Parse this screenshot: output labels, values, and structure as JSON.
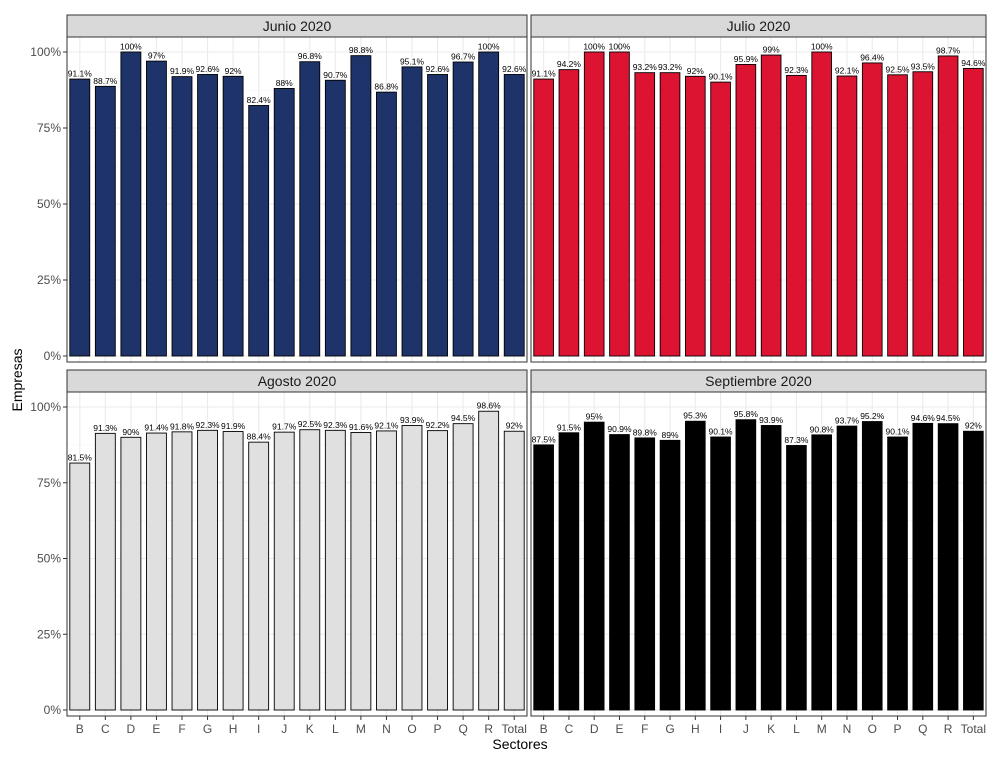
{
  "chart_data": {
    "type": "bar",
    "xlabel": "Sectores",
    "ylabel": "Empresas",
    "ylim": [
      0,
      100
    ],
    "yticks": [
      "0%",
      "25%",
      "50%",
      "75%",
      "100%"
    ],
    "grid": true,
    "legend": "none",
    "categories": [
      "B",
      "C",
      "D",
      "E",
      "F",
      "G",
      "H",
      "I",
      "J",
      "K",
      "L",
      "M",
      "N",
      "O",
      "P",
      "Q",
      "R",
      "Total"
    ],
    "panels": [
      {
        "title": "Junio 2020",
        "color": "#1f336b",
        "values": [
          91.1,
          88.7,
          100,
          97,
          91.9,
          92.6,
          92,
          82.4,
          88,
          96.8,
          90.7,
          98.8,
          86.8,
          95.1,
          92.6,
          96.7,
          100,
          92.6
        ],
        "labels": [
          "91.1%",
          "88.7%",
          "100%",
          "97%",
          "91.9%",
          "92.6%",
          "92%",
          "82.4%",
          "88%",
          "96.8%",
          "90.7%",
          "98.8%",
          "86.8%",
          "95.1%",
          "92.6%",
          "96.7%",
          "100%",
          "92.6%"
        ]
      },
      {
        "title": "Julio 2020",
        "color": "#dc1432",
        "values": [
          91.1,
          94.2,
          100,
          100,
          93.2,
          93.2,
          92,
          90.1,
          95.9,
          99,
          92.3,
          100,
          92.1,
          96.4,
          92.5,
          93.5,
          98.7,
          94.6
        ],
        "labels": [
          "91.1%",
          "94.2%",
          "100%",
          "100%",
          "93.2%",
          "93.2%",
          "92%",
          "90.1%",
          "95.9%",
          "99%",
          "92.3%",
          "100%",
          "92.1%",
          "96.4%",
          "92.5%",
          "93.5%",
          "98.7%",
          "94.6%"
        ]
      },
      {
        "title": "Agosto 2020",
        "color": "#e0e0e0",
        "values": [
          81.5,
          91.3,
          90,
          91.4,
          91.8,
          92.3,
          91.9,
          88.4,
          91.7,
          92.5,
          92.3,
          91.6,
          92.1,
          93.9,
          92.2,
          94.5,
          98.6,
          92
        ],
        "labels": [
          "81.5%",
          "91.3%",
          "90%",
          "91.4%",
          "91.8%",
          "92.3%",
          "91.9%",
          "88.4%",
          "91.7%",
          "92.5%",
          "92.3%",
          "91.6%",
          "92.1%",
          "93.9%",
          "92.2%",
          "94.5%",
          "98.6%",
          "92%"
        ]
      },
      {
        "title": "Septiembre 2020",
        "color": "#000000",
        "values": [
          87.5,
          91.5,
          95,
          90.9,
          89.8,
          89,
          95.3,
          90.1,
          95.8,
          93.9,
          87.3,
          90.8,
          93.7,
          95.2,
          90.1,
          94.6,
          94.5,
          92
        ],
        "labels": [
          "87.5%",
          "91.5%",
          "95%",
          "90.9%",
          "89.8%",
          "89%",
          "95.3%",
          "90.1%",
          "95.8%",
          "93.9%",
          "87.3%",
          "90.8%",
          "93.7%",
          "95.2%",
          "90.1%",
          "94.6%",
          "94.5%",
          "92%"
        ]
      }
    ]
  }
}
